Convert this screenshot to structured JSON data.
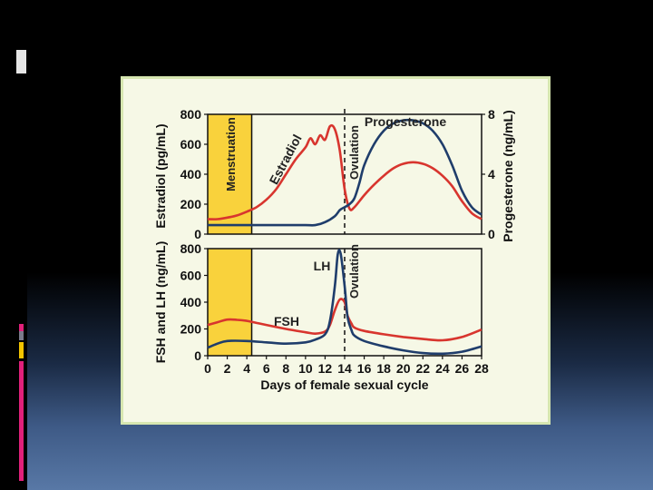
{
  "colors": {
    "estradiol": "#d8352e",
    "progesterone": "#1f3d6b",
    "lh": "#1f3d6b",
    "fsh": "#d8352e",
    "menstruation_band": "#f9d23c",
    "figure_bg": "#f6f8e6",
    "figure_border": "#d6e6b0"
  },
  "chart_data": [
    {
      "type": "line",
      "xlim": [
        0,
        28
      ],
      "ylim": [
        0,
        800
      ],
      "y2lim": [
        0,
        8
      ],
      "ylabel": "Estradiol (pg/mL)",
      "y2label": "Progesterone (ng/mL)",
      "y_ticks": [
        "0",
        "200",
        "400",
        "600",
        "800"
      ],
      "y2_ticks": [
        "0",
        "4",
        "8"
      ],
      "annotations": [
        "Menstruation",
        "Ovulation"
      ],
      "series": [
        {
          "name": "Estradiol",
          "axis": "left",
          "x": [
            0,
            1,
            2,
            3,
            4,
            5,
            6,
            7,
            8,
            9,
            10,
            10.5,
            11,
            11.5,
            12,
            12.5,
            13,
            13.5,
            14,
            14.5,
            15,
            16,
            17,
            18,
            19,
            20,
            21,
            22,
            23,
            24,
            25,
            26,
            27,
            28
          ],
          "y": [
            100,
            100,
            110,
            125,
            150,
            180,
            230,
            300,
            400,
            500,
            580,
            640,
            600,
            660,
            630,
            720,
            700,
            560,
            300,
            170,
            180,
            260,
            330,
            390,
            440,
            470,
            480,
            470,
            440,
            390,
            320,
            220,
            140,
            100
          ]
        },
        {
          "name": "Progesterone",
          "axis": "right",
          "x": [
            0,
            2,
            4,
            6,
            8,
            10,
            11,
            12,
            13,
            13.5,
            14,
            14.5,
            15,
            15.5,
            16,
            17,
            18,
            19,
            20,
            21,
            22,
            23,
            24,
            25,
            26,
            27,
            28
          ],
          "y": [
            0.6,
            0.6,
            0.6,
            0.6,
            0.6,
            0.6,
            0.6,
            0.8,
            1.2,
            1.6,
            1.8,
            2.0,
            2.4,
            3.4,
            4.6,
            6.0,
            6.9,
            7.4,
            7.6,
            7.6,
            7.4,
            6.9,
            6.0,
            4.6,
            2.9,
            1.8,
            1.3
          ]
        }
      ]
    },
    {
      "type": "line",
      "xlim": [
        0,
        28
      ],
      "ylim": [
        0,
        800
      ],
      "xlabel": "Days of female sexual cycle",
      "ylabel": "FSH and LH (ng/mL)",
      "x_ticks": [
        "0",
        "2",
        "4",
        "6",
        "8",
        "10",
        "12",
        "14",
        "16",
        "18",
        "20",
        "22",
        "24",
        "26",
        "28"
      ],
      "y_ticks": [
        "0",
        "200",
        "400",
        "600",
        "800"
      ],
      "annotations": [
        "Ovulation"
      ],
      "series": [
        {
          "name": "LH",
          "x": [
            0,
            1,
            2,
            4,
            6,
            8,
            10,
            11,
            12,
            12.5,
            13,
            13.3,
            13.6,
            14,
            14.3,
            14.7,
            15,
            16,
            18,
            20,
            22,
            24,
            26,
            28
          ],
          "y": [
            60,
            90,
            110,
            110,
            100,
            90,
            100,
            120,
            160,
            260,
            520,
            760,
            760,
            520,
            290,
            190,
            150,
            110,
            70,
            40,
            20,
            15,
            30,
            70
          ]
        },
        {
          "name": "FSH",
          "x": [
            0,
            1,
            2,
            3,
            4,
            5,
            6,
            8,
            10,
            11,
            12,
            12.5,
            13,
            13.5,
            14,
            14.3,
            14.7,
            15,
            16,
            18,
            20,
            22,
            24,
            26,
            28
          ],
          "y": [
            230,
            250,
            270,
            268,
            260,
            245,
            230,
            200,
            175,
            165,
            180,
            230,
            340,
            420,
            400,
            300,
            240,
            210,
            185,
            160,
            140,
            125,
            115,
            140,
            195
          ]
        }
      ]
    }
  ]
}
